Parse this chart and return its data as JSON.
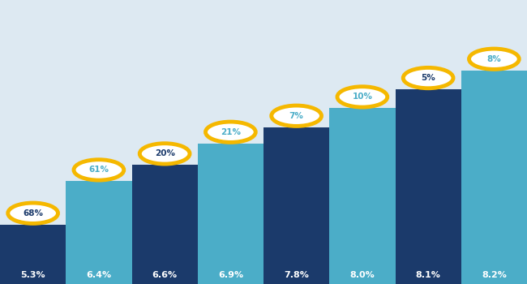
{
  "savings_rates": [
    "5.3%",
    "6.4%",
    "6.6%",
    "6.9%",
    "7.8%",
    "8.0%",
    "8.1%",
    "8.2%"
  ],
  "circle_labels": [
    "68%",
    "61%",
    "20%",
    "21%",
    "7%",
    "10%",
    "5%",
    "8%"
  ],
  "bar_colors": [
    "#1b3a6b",
    "#4badc8",
    "#1b3a6b",
    "#4badc8",
    "#1b3a6b",
    "#4badc8",
    "#1b3a6b",
    "#4badc8"
  ],
  "circle_text_colors": [
    "#1b3a6b",
    "#4badc8",
    "#1b3a6b",
    "#4badc8",
    "#4badc8",
    "#4badc8",
    "#1b3a6b",
    "#4badc8"
  ],
  "savings_label_colors": [
    "#ffffff",
    "#ffffff",
    "#ffffff",
    "#ffffff",
    "#ffffff",
    "#ffffff",
    "#ffffff",
    "#ffffff"
  ],
  "bar_heights": [
    2.2,
    3.8,
    4.4,
    5.2,
    5.8,
    6.5,
    7.2,
    7.9
  ],
  "circle_border_color": "#f5b800",
  "circle_face_color": "#ffffff",
  "background_color": "#dde9f2",
  "ylim": [
    0,
    10.5
  ],
  "n": 8
}
